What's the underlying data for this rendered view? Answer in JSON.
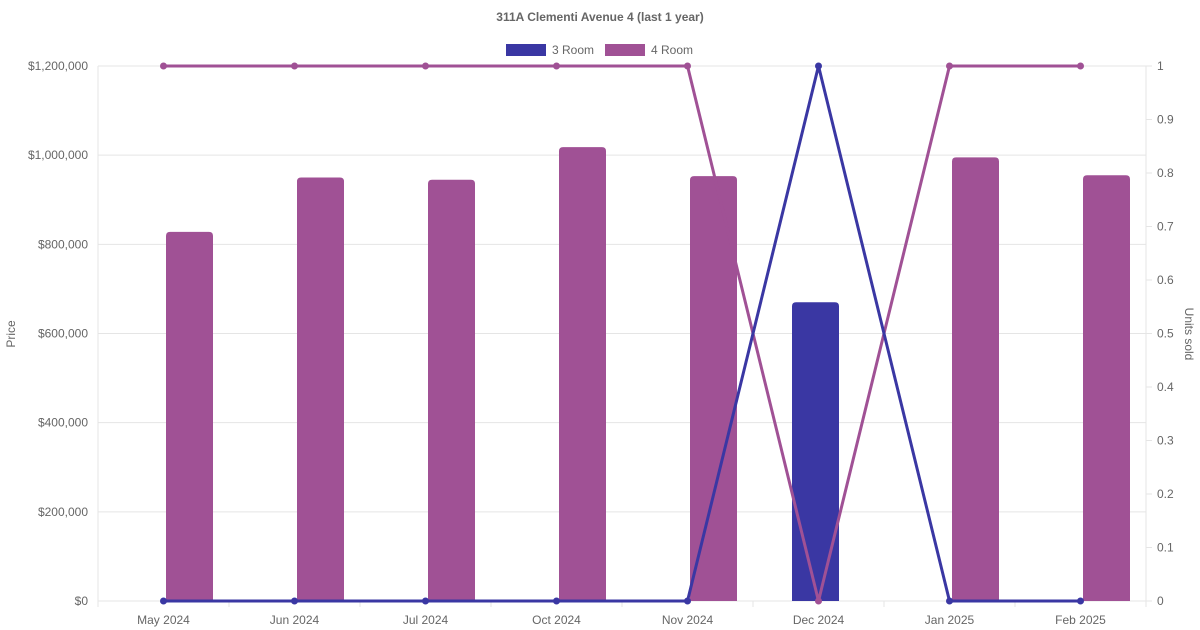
{
  "chart_data": {
    "type": "bar",
    "title": "311A Clementi Avenue 4 (last 1 year)",
    "categories": [
      "May 2024",
      "Jun 2024",
      "Jul 2024",
      "Oct 2024",
      "Nov 2024",
      "Dec 2024",
      "Jan 2025",
      "Feb 2025"
    ],
    "left_axis": {
      "label": "Price",
      "ylim": [
        0,
        1200000
      ],
      "ticks": [
        0,
        200000,
        400000,
        600000,
        800000,
        1000000,
        1200000
      ],
      "tick_labels": [
        "$0",
        "$200,000",
        "$400,000",
        "$600,000",
        "$800,000",
        "$1,000,000",
        "$1,200,000"
      ]
    },
    "right_axis": {
      "label": "Units sold",
      "ylim": [
        0,
        1
      ],
      "ticks": [
        0,
        0.1,
        0.2,
        0.3,
        0.4,
        0.5,
        0.6,
        0.7,
        0.8,
        0.9,
        1
      ],
      "tick_labels": [
        "0",
        "0.1",
        "0.2",
        "0.3",
        "0.4",
        "0.5",
        "0.6",
        "0.7",
        "0.8",
        "0.9",
        "1"
      ]
    },
    "legend": {
      "placement": "top-center",
      "entries": [
        "3 Room",
        "4 Room"
      ]
    },
    "grid": true,
    "series": [
      {
        "name": "3 Room",
        "color": "#3a37a3",
        "price": [
          null,
          null,
          null,
          null,
          null,
          670000,
          null,
          null
        ],
        "units_sold": [
          0,
          0,
          0,
          0,
          0,
          1,
          0,
          0
        ]
      },
      {
        "name": "4 Room",
        "color": "#a05195",
        "price": [
          828000,
          950000,
          945000,
          1018000,
          953000,
          null,
          995000,
          955000
        ],
        "units_sold": [
          1,
          1,
          1,
          1,
          1,
          0,
          1,
          1
        ]
      }
    ]
  }
}
